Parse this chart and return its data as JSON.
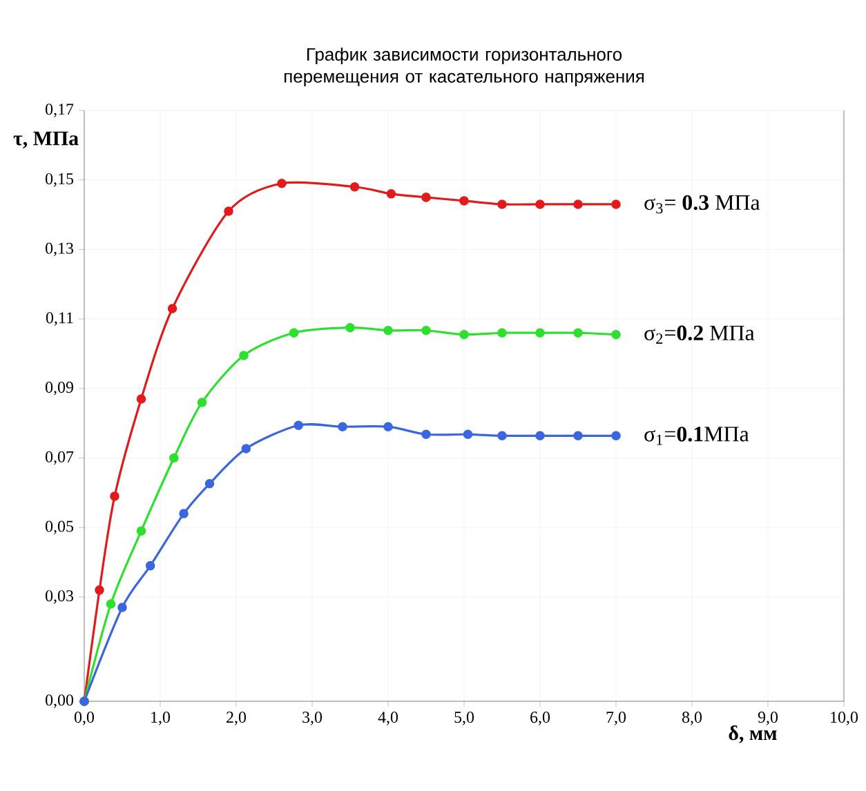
{
  "chart_data": {
    "type": "line",
    "title": "График зависимости горизонтального перемещения от касательного напряжения",
    "xlabel": "δ, мм",
    "ylabel": "τ, МПа",
    "xlim": [
      0,
      10
    ],
    "ylim": [
      0,
      0.17
    ],
    "xticks": [
      {
        "value": 0,
        "label": "0,0"
      },
      {
        "value": 1,
        "label": "1,0"
      },
      {
        "value": 2,
        "label": "2,0"
      },
      {
        "value": 3,
        "label": "3,0"
      },
      {
        "value": 4,
        "label": "4,0"
      },
      {
        "value": 5,
        "label": "5,0"
      },
      {
        "value": 6,
        "label": "6,0"
      },
      {
        "value": 7,
        "label": "7,0"
      },
      {
        "value": 8,
        "label": "8,0"
      },
      {
        "value": 9,
        "label": "9,0"
      },
      {
        "value": 10,
        "label": "10,0"
      }
    ],
    "yticks": [
      {
        "value": 0,
        "label": "0,00"
      },
      {
        "value": 0.03,
        "label": "0,03"
      },
      {
        "value": 0.05,
        "label": "0,05"
      },
      {
        "value": 0.07,
        "label": "0,07"
      },
      {
        "value": 0.09,
        "label": "0,09"
      },
      {
        "value": 0.11,
        "label": "0,11"
      },
      {
        "value": 0.13,
        "label": "0,13"
      },
      {
        "value": 0.15,
        "label": "0,15"
      },
      {
        "value": 0.17,
        "label": "0,17"
      }
    ],
    "grid": true,
    "legend": false,
    "marker": "circle",
    "line_style": "solid",
    "series": [
      {
        "name": "σ$_{3}$= **0.3** МПа",
        "color": "#e31a1c",
        "x": [
          0,
          0.2,
          0.4,
          0.75,
          1.16,
          1.9,
          2.6,
          3.56,
          4.04,
          4.5,
          5.0,
          5.5,
          6.0,
          6.5,
          7.0
        ],
        "values": [
          0,
          0.032,
          0.059,
          0.087,
          0.113,
          0.141,
          0.149,
          0.148,
          0.146,
          0.145,
          0.144,
          0.143,
          0.143,
          0.143,
          0.143
        ]
      },
      {
        "name": "σ$_{2}$=**0.2**    МПа",
        "color": "#2ee02e",
        "x": [
          0,
          0.35,
          0.75,
          1.18,
          1.55,
          2.1,
          2.76,
          3.5,
          4.0,
          4.5,
          5.0,
          5.5,
          6.0,
          6.5,
          7.0
        ],
        "values": [
          0,
          0.028,
          0.049,
          0.07,
          0.086,
          0.0995,
          0.106,
          0.1075,
          0.1067,
          0.1067,
          0.1055,
          0.106,
          0.106,
          0.106,
          0.1055
        ]
      },
      {
        "name": "σ$_{1}$=**0.1**МПа",
        "color": "#3a66e0",
        "x": [
          0,
          0.5,
          0.87,
          1.31,
          1.65,
          2.13,
          2.82,
          3.4,
          4.0,
          4.5,
          5.05,
          5.5,
          6.0,
          6.5,
          7.0
        ],
        "values": [
          0,
          0.027,
          0.039,
          0.054,
          0.0626,
          0.0727,
          0.0794,
          0.079,
          0.079,
          0.0768,
          0.0768,
          0.0764,
          0.0764,
          0.0764,
          0.0764
        ]
      }
    ]
  }
}
